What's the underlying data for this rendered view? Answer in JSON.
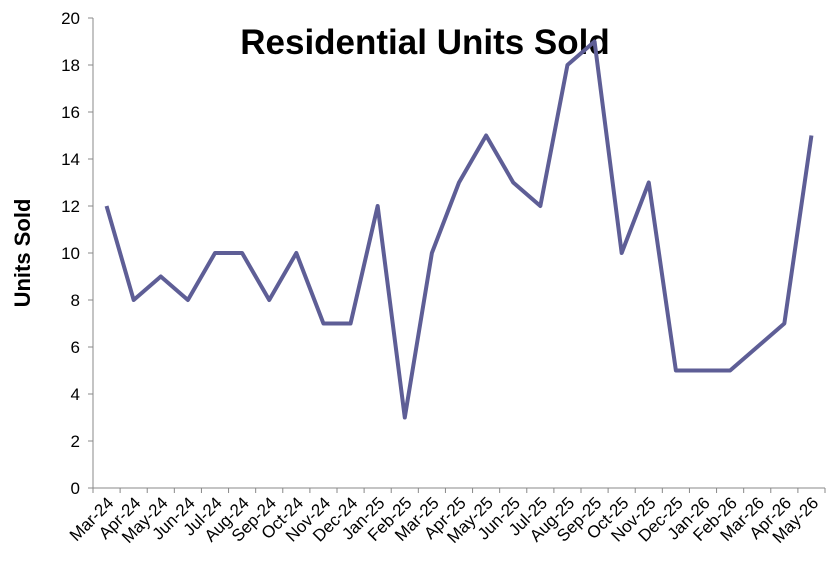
{
  "chart_data": {
    "type": "line",
    "title": "Residential Units Sold",
    "y_label": "Units Sold",
    "categories": [
      "Mar-24",
      "Apr-24",
      "May-24",
      "Jun-24",
      "Jul-24",
      "Aug-24",
      "Sep-24",
      "Oct-24",
      "Nov-24",
      "Dec-24",
      "Jan-25",
      "Feb-25",
      "Mar-25",
      "Apr-25",
      "May-25",
      "Jun-25",
      "Jul-25",
      "Aug-25",
      "Sep-25",
      "Oct-25",
      "Nov-25",
      "Dec-25",
      "Jan-26",
      "Feb-26",
      "Mar-26",
      "Apr-26",
      "May-26"
    ],
    "values": [
      12,
      8,
      9,
      8,
      10,
      10,
      8,
      10,
      7,
      7,
      12,
      3,
      10,
      13,
      15,
      13,
      12,
      18,
      19,
      10,
      13,
      5,
      5,
      5,
      6,
      7,
      15
    ],
    "color": "#5e5e96",
    "ylim": [
      0,
      20
    ],
    "yticks": [
      0,
      2,
      4,
      6,
      8,
      10,
      12,
      14,
      16,
      18,
      20
    ],
    "grid": false
  }
}
